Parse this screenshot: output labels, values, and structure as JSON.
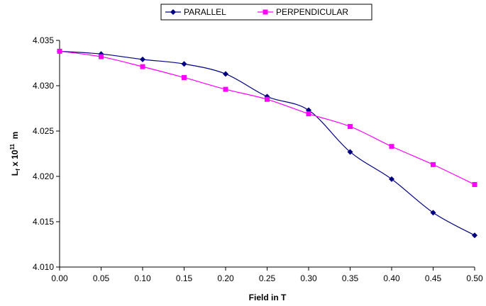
{
  "chart_data": {
    "type": "line",
    "title": "",
    "xlabel": "Field in T",
    "ylabel_main": "L",
    "ylabel_sub": "f",
    "ylabel_mid": " x 10",
    "ylabel_sup": "11",
    "ylabel_unit": "  m",
    "x": [
      0.0,
      0.05,
      0.1,
      0.15,
      0.2,
      0.25,
      0.3,
      0.35,
      0.4,
      0.45,
      0.5
    ],
    "x_tick_labels": [
      "0.00",
      "0.05",
      "0.10",
      "0.15",
      "0.20",
      "0.25",
      "0.30",
      "0.35",
      "0.40",
      "0.45",
      "0.50"
    ],
    "y_tick_values": [
      4.01,
      4.015,
      4.02,
      4.025,
      4.03,
      4.035
    ],
    "y_tick_labels": [
      "4.010",
      "4.015",
      "4.020",
      "4.025",
      "4.030",
      "4.035"
    ],
    "xlim": [
      0.0,
      0.5
    ],
    "ylim": [
      4.01,
      4.035
    ],
    "grid": false,
    "legend_position": "top-center",
    "series": [
      {
        "name": "PARALLEL",
        "color": "#000080",
        "marker": "diamond",
        "values": [
          4.0338,
          4.0335,
          4.0329,
          4.0324,
          4.0313,
          4.0288,
          4.0273,
          4.0227,
          4.0197,
          4.016,
          4.0135
        ]
      },
      {
        "name": "PERPENDICULAR",
        "color": "#FF00FF",
        "marker": "square",
        "values": [
          4.0338,
          4.0332,
          4.0321,
          4.0309,
          4.0296,
          4.0285,
          4.0269,
          4.0255,
          4.0233,
          4.0213,
          4.0191
        ]
      }
    ]
  }
}
